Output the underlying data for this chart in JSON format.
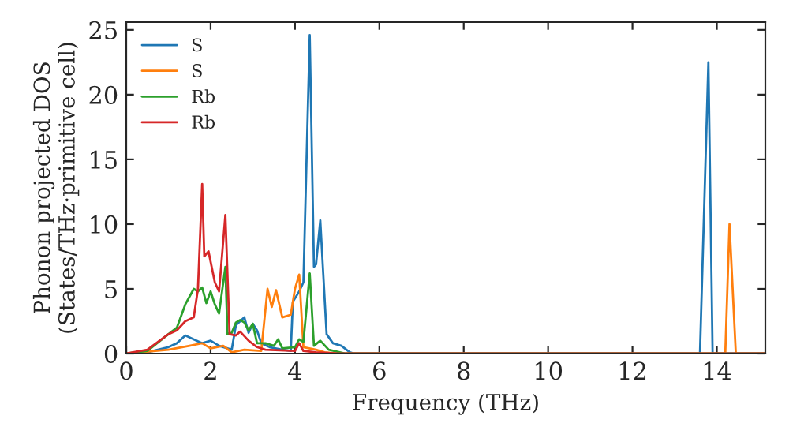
{
  "chart_data": {
    "type": "line",
    "xlabel": "Frequency (THz)",
    "ylabel": "Phonon projected DOS\n(States/THz·primitive cell)",
    "xlim": [
      0,
      15.15
    ],
    "ylim": [
      0,
      25.6
    ],
    "xticks": [
      0,
      2,
      4,
      6,
      8,
      10,
      12,
      14
    ],
    "yticks": [
      0,
      5,
      10,
      15,
      20,
      25
    ],
    "grid": false,
    "legend": "top left",
    "marker": "none",
    "line_style": "solid",
    "series": [
      {
        "name": "S",
        "color": "#1f77b4",
        "x": [
          0,
          0.5,
          1,
          1.2,
          1.4,
          1.6,
          1.8,
          2,
          2.2,
          2.4,
          2.5,
          2.6,
          2.8,
          2.9,
          3.0,
          3.1,
          3.2,
          3.4,
          3.7,
          3.9,
          3.95,
          4.1,
          4.2,
          4.35,
          4.45,
          4.5,
          4.6,
          4.75,
          4.9,
          5.1,
          5.3,
          5.4,
          13.6,
          13.8,
          13.9,
          15.15
        ],
        "values": [
          0,
          0.1,
          0.5,
          0.8,
          1.4,
          1.1,
          0.8,
          1.0,
          0.6,
          0.4,
          0.3,
          2.2,
          2.8,
          1.6,
          2.3,
          1.8,
          0.8,
          0.5,
          0.3,
          0.2,
          4,
          4.8,
          5.5,
          24.6,
          6.7,
          6.9,
          10.3,
          1.5,
          0.8,
          0.6,
          0.1,
          0,
          0,
          22.5,
          0,
          0
        ]
      },
      {
        "name": "S",
        "color": "#ff7f0e",
        "x": [
          0,
          1,
          1.5,
          1.8,
          2.0,
          2.3,
          2.5,
          2.8,
          3.2,
          3.35,
          3.45,
          3.55,
          3.7,
          3.9,
          4.0,
          4.1,
          4.2,
          4.5,
          4.7,
          5,
          14.2,
          14.3,
          14.45,
          15.15
        ],
        "values": [
          0,
          0.3,
          0.6,
          0.8,
          0.4,
          0.6,
          0.1,
          0.3,
          0.2,
          5.0,
          3.6,
          4.9,
          2.8,
          3.0,
          5.0,
          6.1,
          0.5,
          0.3,
          0.1,
          0,
          0,
          10.0,
          0,
          0
        ]
      },
      {
        "name": "Rb",
        "color": "#2ca02c",
        "x": [
          0,
          0.5,
          1,
          1.2,
          1.4,
          1.6,
          1.7,
          1.8,
          1.9,
          2.0,
          2.1,
          2.2,
          2.35,
          2.4,
          2.5,
          2.6,
          2.7,
          2.8,
          2.9,
          3.0,
          3.1,
          3.3,
          3.5,
          3.6,
          3.7,
          4.0,
          4.1,
          4.2,
          4.35,
          4.45,
          4.6,
          4.8,
          5.2,
          15.15
        ],
        "values": [
          0,
          0.2,
          1.5,
          2,
          3.8,
          5.0,
          4.8,
          5.1,
          3.9,
          4.8,
          3.8,
          3.1,
          6.7,
          1.5,
          1.6,
          2.4,
          2.6,
          2.4,
          1.8,
          2.3,
          0.8,
          0.8,
          0.6,
          1.1,
          0.4,
          0.5,
          1.1,
          0.9,
          6.2,
          0.6,
          1.0,
          0.3,
          0,
          0
        ]
      },
      {
        "name": "Rb",
        "color": "#d62728",
        "x": [
          0,
          0.5,
          1,
          1.2,
          1.4,
          1.6,
          1.7,
          1.8,
          1.85,
          1.95,
          2.1,
          2.2,
          2.35,
          2.45,
          2.6,
          2.7,
          2.9,
          3.1,
          3.3,
          4.0,
          4.1,
          4.2,
          4.5,
          5,
          15.15
        ],
        "values": [
          0,
          0.3,
          1.5,
          1.8,
          2.5,
          2.8,
          5,
          13.1,
          7.5,
          7.9,
          5.5,
          4.8,
          10.7,
          1.5,
          1.4,
          1.7,
          1.0,
          0.5,
          0.3,
          0.2,
          0.8,
          0.2,
          0.1,
          0,
          0
        ]
      }
    ]
  }
}
